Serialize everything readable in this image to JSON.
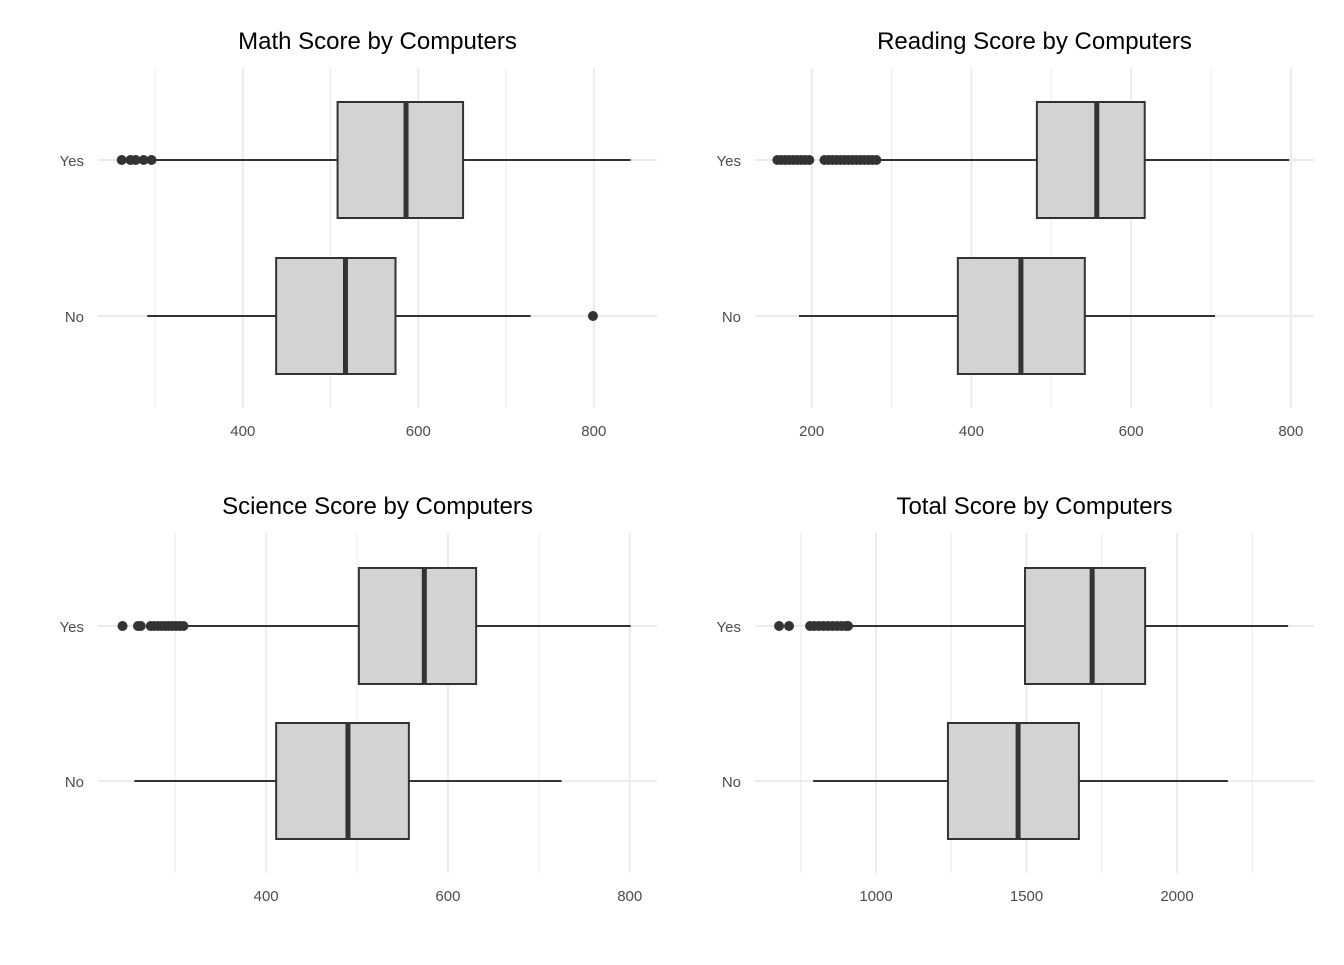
{
  "chart_data": [
    {
      "type": "boxplot",
      "title": "Math Score by Computers",
      "xlabel": "",
      "ylabel": "",
      "xlim": [
        235,
        872
      ],
      "major_ticks": [
        400,
        600,
        800
      ],
      "minor_ticks": [
        300,
        500,
        700
      ],
      "grid": true,
      "categories": [
        "Yes",
        "No"
      ],
      "series": [
        {
          "name": "Yes",
          "min": 300,
          "q1": 508,
          "median": 586,
          "q3": 651,
          "max": 842,
          "outliers": [
            262,
            272,
            278,
            287,
            296
          ]
        },
        {
          "name": "No",
          "min": 291,
          "q1": 438,
          "median": 517,
          "q3": 574,
          "max": 728,
          "outliers": [
            799
          ]
        }
      ]
    },
    {
      "type": "boxplot",
      "title": "Reading Score by Computers",
      "xlabel": "",
      "ylabel": "",
      "xlim": [
        129,
        829
      ],
      "major_ticks": [
        200,
        400,
        600,
        800
      ],
      "minor_ticks": [
        300,
        500,
        700
      ],
      "grid": true,
      "categories": [
        "Yes",
        "No"
      ],
      "series": [
        {
          "name": "Yes",
          "min": 281,
          "q1": 482,
          "median": 557,
          "q3": 617,
          "max": 798,
          "outliers": [
            157,
            162,
            167,
            172,
            177,
            182,
            187,
            192,
            197,
            216,
            221,
            226,
            231,
            236,
            241,
            246,
            251,
            256,
            261,
            266,
            271,
            276,
            281
          ]
        },
        {
          "name": "No",
          "min": 184,
          "q1": 383,
          "median": 462,
          "q3": 542,
          "max": 705,
          "outliers": []
        }
      ]
    },
    {
      "type": "boxplot",
      "title": "Science Score by Computers",
      "xlabel": "",
      "ylabel": "",
      "xlim": [
        215,
        830
      ],
      "major_ticks": [
        400,
        600,
        800
      ],
      "minor_ticks": [
        300,
        500,
        700
      ],
      "grid": true,
      "categories": [
        "Yes",
        "No"
      ],
      "series": [
        {
          "name": "Yes",
          "min": 311,
          "q1": 502,
          "median": 574,
          "q3": 631,
          "max": 801,
          "outliers": [
            242,
            259,
            262,
            273,
            277,
            281,
            285,
            289,
            293,
            297,
            301,
            305,
            309
          ]
        },
        {
          "name": "No",
          "min": 255,
          "q1": 411,
          "median": 490,
          "q3": 557,
          "max": 725,
          "outliers": []
        }
      ]
    },
    {
      "type": "boxplot",
      "title": "Total Score by Computers",
      "xlabel": "",
      "ylabel": "",
      "xlim": [
        598,
        2455
      ],
      "major_ticks": [
        1000,
        1500,
        2000
      ],
      "minor_ticks": [
        750,
        1250,
        1750,
        2250
      ],
      "grid": true,
      "categories": [
        "Yes",
        "No"
      ],
      "series": [
        {
          "name": "Yes",
          "min": 907,
          "q1": 1495,
          "median": 1718,
          "q3": 1894,
          "max": 2369,
          "outliers": [
            678,
            711,
            781,
            795,
            810,
            825,
            840,
            855,
            870,
            885,
            900,
            907
          ]
        },
        {
          "name": "No",
          "min": 791,
          "q1": 1239,
          "median": 1472,
          "q3": 1674,
          "max": 2169,
          "outliers": []
        }
      ]
    }
  ],
  "colors": {
    "box_fill": "#d3d3d3",
    "line": "#333333",
    "grid": "#ebebeb",
    "tick_text": "#4d4d4d"
  }
}
